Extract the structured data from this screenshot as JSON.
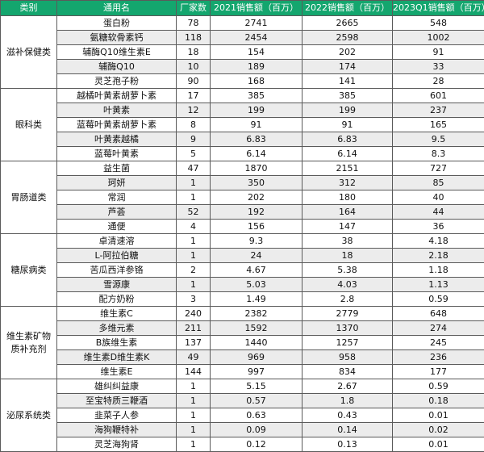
{
  "header": {
    "category": "类别",
    "name": "通用名",
    "makers": "厂家数",
    "sales2021": "2021销售额（百万）",
    "sales2022": "2022销售额（百万）",
    "sales2023q1": "2023Q1销售额（百万）"
  },
  "groups": [
    {
      "category": "滋补保健类",
      "rows": [
        [
          "蛋白粉",
          "78",
          "2741",
          "2665",
          "548"
        ],
        [
          "氨糖软骨素钙",
          "118",
          "2454",
          "2598",
          "1002"
        ],
        [
          "辅酶Q10维生素E",
          "18",
          "154",
          "202",
          "91"
        ],
        [
          "辅酶Q10",
          "10",
          "189",
          "174",
          "33"
        ],
        [
          "灵芝孢子粉",
          "90",
          "168",
          "141",
          "28"
        ]
      ]
    },
    {
      "category": "眼科类",
      "rows": [
        [
          "越橘叶黄素胡萝卜素",
          "17",
          "385",
          "385",
          "601"
        ],
        [
          "叶黄素",
          "12",
          "199",
          "199",
          "237"
        ],
        [
          "蓝莓叶黄素胡萝卜素",
          "8",
          "91",
          "91",
          "165"
        ],
        [
          "叶黄素越橘",
          "9",
          "6.83",
          "6.83",
          "9.5"
        ],
        [
          "蓝莓叶黄素",
          "5",
          "6.14",
          "6.14",
          "8.3"
        ]
      ]
    },
    {
      "category": "胃肠道类",
      "rows": [
        [
          "益生菌",
          "47",
          "1870",
          "2151",
          "727"
        ],
        [
          "珂妍",
          "1",
          "350",
          "312",
          "85"
        ],
        [
          "常润",
          "1",
          "202",
          "180",
          "40"
        ],
        [
          "芦荟",
          "52",
          "192",
          "164",
          "44"
        ],
        [
          "通便",
          "4",
          "156",
          "147",
          "36"
        ]
      ]
    },
    {
      "category": "糖尿病类",
      "rows": [
        [
          "卓清速溶",
          "1",
          "9.3",
          "38",
          "4.18"
        ],
        [
          "L-阿拉伯糖",
          "1",
          "24",
          "18",
          "2.18"
        ],
        [
          "苦瓜西洋参铬",
          "2",
          "4.67",
          "5.38",
          "1.18"
        ],
        [
          "雪源康",
          "1",
          "5.03",
          "4.03",
          "1.13"
        ],
        [
          "配方奶粉",
          "3",
          "1.49",
          "2.8",
          "0.59"
        ]
      ]
    },
    {
      "category": "维生素矿物质补充剂",
      "rows": [
        [
          "维生素C",
          "240",
          "2382",
          "2779",
          "648"
        ],
        [
          "多维元素",
          "211",
          "1592",
          "1370",
          "274"
        ],
        [
          "B族维生素",
          "137",
          "1440",
          "1257",
          "245"
        ],
        [
          "维生素D维生素K",
          "49",
          "969",
          "958",
          "236"
        ],
        [
          "维生素E",
          "144",
          "997",
          "834",
          "177"
        ]
      ]
    },
    {
      "category": "泌尿系统类",
      "rows": [
        [
          "雄纠纠益康",
          "1",
          "5.15",
          "2.67",
          "0.59"
        ],
        [
          "至宝特质三鞭酒",
          "1",
          "0.57",
          "1.8",
          "0.18"
        ],
        [
          "韭菜子人参",
          "1",
          "0.63",
          "0.43",
          "0.01"
        ],
        [
          "海狗鞭特补",
          "1",
          "0.09",
          "0.14",
          "0.02"
        ],
        [
          "灵芝海狗肾",
          "1",
          "0.12",
          "0.13",
          "0.01"
        ]
      ]
    }
  ]
}
